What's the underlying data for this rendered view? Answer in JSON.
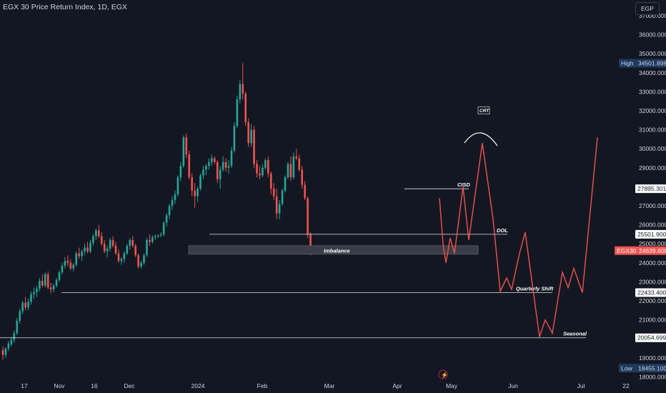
{
  "header": {
    "title": "EGX 30 Price Return Index, 1D, EGX",
    "currency": "EGP"
  },
  "colors": {
    "bg": "#131722",
    "up": "#26a69a",
    "down": "#ef5350",
    "text": "#d1d4dc",
    "line": "#e0e3eb"
  },
  "chart_data": {
    "type": "candlestick",
    "symbol": "EGX30",
    "y_axis": {
      "ticks": [
        "37000.000",
        "36000.000",
        "35000.000",
        "34000.000",
        "33000.000",
        "32000.000",
        "31000.000",
        "30000.000",
        "29000.000",
        "28000.000",
        "27000.000",
        "26000.000",
        "25000.000",
        "24000.000",
        "23000.000",
        "22000.000",
        "21000.000",
        "20000.000",
        "19000.000",
        "18000.000"
      ],
      "range": [
        17800,
        37500
      ]
    },
    "x_axis": {
      "labels": [
        "17",
        "Nov",
        "16",
        "Dec",
        "2024",
        "Feb",
        "Mar",
        "Apr",
        "May",
        "Jun",
        "Jul",
        "22"
      ]
    },
    "price_labels": {
      "high": {
        "tag": "High",
        "value": "34501.898"
      },
      "low": {
        "tag": "Low",
        "value": "18455.100"
      },
      "current": {
        "tag": "EGX30",
        "value": "24639.600"
      },
      "levels": [
        "27895.301",
        "25501.900",
        "22433.400",
        "20054.699"
      ]
    },
    "annotations": [
      "CRT",
      "CISD",
      "DOL",
      "Imbalance",
      "Quarterly Shift",
      "Seasonal"
    ],
    "candles_ohlc": [
      [
        19400,
        19600,
        18900,
        19150
      ],
      [
        19150,
        19550,
        19000,
        19500
      ],
      [
        19500,
        19900,
        19350,
        19750
      ],
      [
        19700,
        20100,
        19600,
        19950
      ],
      [
        19950,
        20450,
        19800,
        20300
      ],
      [
        20300,
        21100,
        20200,
        20950
      ],
      [
        20950,
        21600,
        20800,
        21450
      ],
      [
        21450,
        22000,
        21300,
        21900
      ],
      [
        21900,
        22200,
        21500,
        21650
      ],
      [
        21650,
        22100,
        21500,
        21950
      ],
      [
        21950,
        22500,
        21800,
        22350
      ],
      [
        22350,
        22700,
        22100,
        22450
      ],
      [
        22450,
        22800,
        22200,
        22650
      ],
      [
        22650,
        23200,
        22500,
        23050
      ],
      [
        23050,
        23400,
        22700,
        22800
      ],
      [
        22800,
        23500,
        22700,
        23400
      ],
      [
        23400,
        23550,
        22600,
        22700
      ],
      [
        22700,
        22950,
        22400,
        22600
      ],
      [
        22600,
        22900,
        22450,
        22800
      ],
      [
        22800,
        23200,
        22700,
        23100
      ],
      [
        23100,
        23600,
        23000,
        23500
      ],
      [
        23500,
        24000,
        23400,
        23850
      ],
      [
        23850,
        24300,
        23700,
        24100
      ],
      [
        24100,
        24400,
        23800,
        24000
      ],
      [
        24000,
        24200,
        23600,
        23700
      ],
      [
        23700,
        24000,
        23550,
        23900
      ],
      [
        23900,
        24600,
        23800,
        24500
      ],
      [
        24500,
        24800,
        24200,
        24350
      ],
      [
        24350,
        24700,
        24100,
        24600
      ],
      [
        24600,
        25000,
        24400,
        24800
      ],
      [
        24800,
        25100,
        24500,
        24600
      ],
      [
        24600,
        25200,
        24500,
        25050
      ],
      [
        25050,
        25500,
        24900,
        25400
      ],
      [
        25400,
        25800,
        25200,
        25700
      ],
      [
        25700,
        26000,
        25300,
        25400
      ],
      [
        25400,
        25600,
        24900,
        25000
      ],
      [
        25000,
        25200,
        24500,
        24600
      ],
      [
        24600,
        24900,
        24300,
        24750
      ],
      [
        24750,
        25300,
        24600,
        25200
      ],
      [
        25200,
        25400,
        24800,
        24900
      ],
      [
        24900,
        25100,
        24400,
        24500
      ],
      [
        24500,
        24700,
        24000,
        24100
      ],
      [
        24100,
        24300,
        23900,
        24200
      ],
      [
        24200,
        24600,
        24000,
        24500
      ],
      [
        24500,
        25000,
        24400,
        24900
      ],
      [
        24900,
        25300,
        24700,
        25200
      ],
      [
        25200,
        25400,
        24800,
        24900
      ],
      [
        24900,
        25000,
        24300,
        24400
      ],
      [
        24400,
        24500,
        23700,
        23800
      ],
      [
        23800,
        24100,
        23700,
        24000
      ],
      [
        24000,
        24500,
        23900,
        24400
      ],
      [
        24400,
        25300,
        24300,
        25200
      ],
      [
        25200,
        25500,
        24900,
        25100
      ],
      [
        25100,
        25450,
        25000,
        25350
      ],
      [
        25350,
        25500,
        25200,
        25400
      ],
      [
        25400,
        25500,
        25300,
        25450
      ],
      [
        25450,
        25600,
        25350,
        25500
      ],
      [
        25500,
        26200,
        25400,
        26100
      ],
      [
        26100,
        26600,
        25900,
        26500
      ],
      [
        26500,
        27100,
        26300,
        27000
      ],
      [
        27000,
        27500,
        26800,
        27300
      ],
      [
        27300,
        27800,
        27100,
        27600
      ],
      [
        27600,
        28600,
        27500,
        28500
      ],
      [
        28500,
        29300,
        28300,
        29100
      ],
      [
        29100,
        30700,
        29000,
        30600
      ],
      [
        30600,
        30800,
        29500,
        29700
      ],
      [
        29700,
        29900,
        28400,
        28500
      ],
      [
        28500,
        28700,
        27500,
        27800
      ],
      [
        27800,
        28200,
        26900,
        27500
      ],
      [
        27500,
        28000,
        27200,
        27900
      ],
      [
        27900,
        28700,
        27800,
        28600
      ],
      [
        28600,
        29100,
        28400,
        28900
      ],
      [
        28900,
        29200,
        28600,
        29100
      ],
      [
        29100,
        29500,
        28900,
        29300
      ],
      [
        29300,
        29700,
        29100,
        29500
      ],
      [
        29500,
        29600,
        29200,
        29300
      ],
      [
        29300,
        29400,
        28200,
        28400
      ],
      [
        28400,
        29100,
        27900,
        28900
      ],
      [
        28900,
        29600,
        28800,
        29300
      ],
      [
        29300,
        29500,
        28800,
        29000
      ],
      [
        29000,
        29400,
        28700,
        29100
      ],
      [
        29100,
        30100,
        29000,
        29900
      ],
      [
        29900,
        31400,
        29800,
        31200
      ],
      [
        31200,
        32800,
        31100,
        32600
      ],
      [
        32600,
        33600,
        32400,
        33400
      ],
      [
        33400,
        34500,
        32600,
        32900
      ],
      [
        32900,
        33000,
        31200,
        31400
      ],
      [
        31400,
        31600,
        30100,
        30300
      ],
      [
        30300,
        31300,
        30100,
        31000
      ],
      [
        31000,
        31200,
        29000,
        29200
      ],
      [
        29200,
        29400,
        28500,
        28700
      ],
      [
        28700,
        29100,
        28400,
        28600
      ],
      [
        28600,
        29200,
        28500,
        29000
      ],
      [
        29000,
        29500,
        28900,
        29400
      ],
      [
        29400,
        29600,
        28500,
        28700
      ],
      [
        28700,
        28800,
        27600,
        27900
      ],
      [
        27900,
        28200,
        27300,
        27500
      ],
      [
        27500,
        27900,
        26300,
        26600
      ],
      [
        26600,
        27300,
        26300,
        27100
      ],
      [
        27100,
        27900,
        27000,
        27800
      ],
      [
        27800,
        28600,
        27700,
        28500
      ],
      [
        28500,
        29300,
        28400,
        29200
      ],
      [
        29200,
        29600,
        28300,
        28500
      ],
      [
        28500,
        29800,
        28400,
        29600
      ],
      [
        29600,
        30000,
        29400,
        29500
      ],
      [
        29500,
        29700,
        28800,
        28900
      ],
      [
        28900,
        29100,
        27900,
        28100
      ],
      [
        28100,
        28300,
        27300,
        27400
      ],
      [
        27400,
        27500,
        25300,
        25500
      ],
      [
        25500,
        25600,
        24400,
        24639
      ]
    ],
    "projection_path": [
      [
        27400,
        25100
      ],
      [
        24900,
        25300
      ],
      [
        24000,
        24600
      ],
      [
        25000,
        25600
      ],
      [
        24500,
        25500
      ],
      [
        26400,
        27200
      ],
      [
        24600,
        25100
      ],
      [
        24800,
        25500
      ],
      [
        27500,
        30300
      ],
      [
        26000,
        26700
      ],
      [
        22500,
        22433
      ],
      [
        23000,
        23300
      ],
      [
        22600,
        22600
      ],
      [
        24000,
        25300
      ],
      [
        20054,
        20100
      ],
      [
        21000,
        20500
      ],
      [
        20400,
        20200
      ],
      [
        23100,
        23700
      ],
      [
        22600,
        22433
      ],
      [
        23400,
        30600
      ]
    ]
  }
}
